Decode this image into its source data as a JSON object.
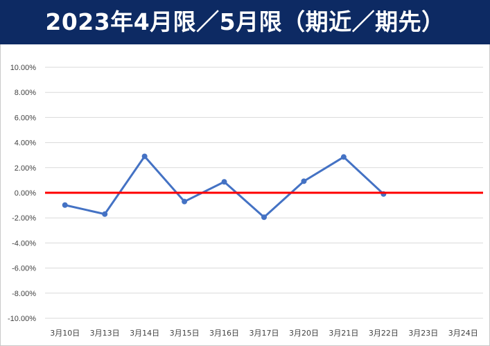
{
  "chart_data": {
    "type": "line",
    "title": "2023年4月限／5月限（期近／期先）",
    "categories": [
      "3月10日",
      "3月13日",
      "3月14日",
      "3月15日",
      "3月16日",
      "3月17日",
      "3月20日",
      "3月21日",
      "3月22日",
      "3月23日",
      "3月24日"
    ],
    "series": [
      {
        "color": "#4472c4",
        "values": [
          -0.0098,
          -0.017,
          0.029,
          -0.007,
          0.0087,
          -0.0195,
          0.0092,
          0.0285,
          -0.001,
          null,
          null
        ]
      }
    ],
    "reference_line": {
      "value": 0.0,
      "color": "#ff0000"
    },
    "ylim": [
      -0.1,
      0.1
    ],
    "y_ticks": [
      "10.00%",
      "8.00%",
      "6.00%",
      "4.00%",
      "2.00%",
      "0.00%",
      "-2.00%",
      "-4.00%",
      "-6.00%",
      "-8.00%",
      "-10.00%"
    ],
    "y_tick_values": [
      0.1,
      0.08,
      0.06,
      0.04,
      0.02,
      0.0,
      -0.02,
      -0.04,
      -0.06,
      -0.08,
      -0.1
    ],
    "grid": true,
    "legend": "none",
    "xlabel": "",
    "ylabel": ""
  },
  "colors": {
    "header_bg": "#0d2a63",
    "header_text": "#ffffff",
    "gridline": "#d9d9d9"
  }
}
